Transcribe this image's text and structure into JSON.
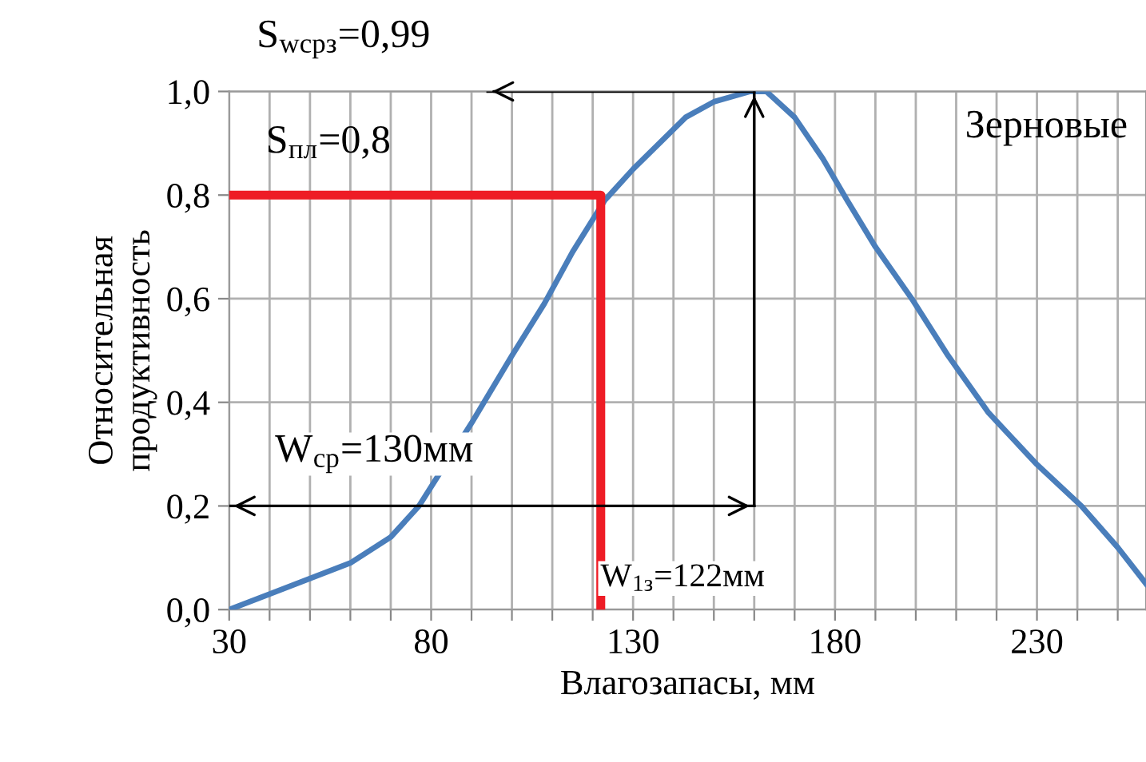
{
  "chart_data": {
    "type": "line",
    "xlabel": "Влагозапасы, мм",
    "ylabel": "Относительная\nпродуктивность",
    "xlim": [
      30,
      257
    ],
    "ylim": [
      0,
      1.0
    ],
    "xticks": [
      30,
      {
        "value": 40,
        "label": null
      },
      {
        "value": 50,
        "label": null
      },
      {
        "value": 60,
        "label": null
      },
      {
        "value": 70,
        "label": null
      },
      80,
      {
        "value": 90,
        "label": null
      },
      {
        "value": 100,
        "label": null
      },
      {
        "value": 110,
        "label": null
      },
      {
        "value": 120,
        "label": null
      },
      130,
      {
        "value": 140,
        "label": null
      },
      {
        "value": 150,
        "label": null
      },
      {
        "value": 160,
        "label": null
      },
      {
        "value": 170,
        "label": null
      },
      180,
      {
        "value": 190,
        "label": null
      },
      {
        "value": 200,
        "label": null
      },
      {
        "value": 210,
        "label": null
      },
      {
        "value": 220,
        "label": null
      },
      230,
      {
        "value": 240,
        "label": null
      },
      {
        "value": 250,
        "label": null
      }
    ],
    "yticks": [
      {
        "value": 0,
        "label": "0,0"
      },
      {
        "value": 0.2,
        "label": "0,2"
      },
      {
        "value": 0.4,
        "label": "0,4"
      },
      {
        "value": 0.6,
        "label": "0,6"
      },
      {
        "value": 0.8,
        "label": "0,8"
      },
      {
        "value": 1.0,
        "label": "1,0"
      }
    ],
    "grid": true,
    "legend": false,
    "marker": "none",
    "line_style": "solid",
    "series": [
      {
        "color": "#4a7ebb",
        "x": [
          30,
          40,
          50,
          60,
          70,
          77,
          90,
          100,
          108,
          115,
          123,
          130,
          143,
          150,
          159,
          163,
          170,
          177,
          183,
          190,
          199,
          208,
          218,
          230,
          241,
          250,
          257
        ],
        "values": [
          0,
          0.03,
          0.06,
          0.09,
          0.14,
          0.2,
          0.36,
          0.49,
          0.59,
          0.69,
          0.79,
          0.85,
          0.95,
          0.98,
          1.0,
          1.0,
          0.95,
          0.87,
          0.79,
          0.7,
          0.6,
          0.49,
          0.38,
          0.28,
          0.2,
          0.12,
          0.05
        ]
      },
      {
        "color": "#ee1c25",
        "x": [
          30,
          122,
          122
        ],
        "values": [
          0.8,
          0.8,
          0
        ]
      },
      {
        "color": "#000000",
        "x": [
          160,
          94
        ],
        "values": [
          1.0,
          1.0
        ]
      },
      {
        "color": "#000000",
        "x": [
          30,
          160
        ],
        "values": [
          0.2,
          0.2
        ]
      },
      {
        "color": "#000000",
        "x": [
          160,
          160
        ],
        "values": [
          0.2,
          1.0
        ]
      }
    ],
    "annotations": [
      "S$_{wсрз}$=0,99",
      "S$_{пл}$=0,8",
      "W$_{ср}$=130мм",
      "W$_{1з}$=122мм",
      "Зерновые"
    ]
  }
}
